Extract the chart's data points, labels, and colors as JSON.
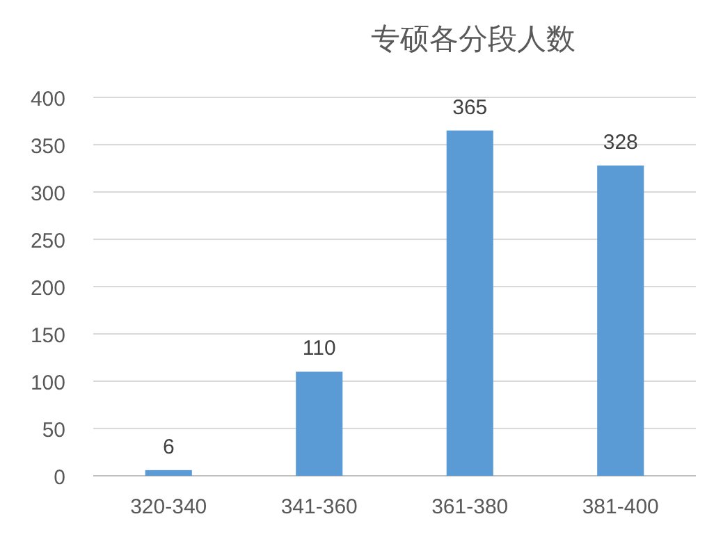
{
  "chart_data": {
    "type": "bar",
    "title": "专硕各分段人数",
    "categories": [
      "320-340",
      "341-360",
      "361-380",
      "381-400"
    ],
    "values": [
      6,
      110,
      365,
      328
    ],
    "color": "#5b9bd5",
    "ylim": [
      0,
      400
    ],
    "yticks": [
      0,
      50,
      100,
      150,
      200,
      250,
      300,
      350,
      400
    ],
    "grid": "y",
    "data_labels": true
  }
}
